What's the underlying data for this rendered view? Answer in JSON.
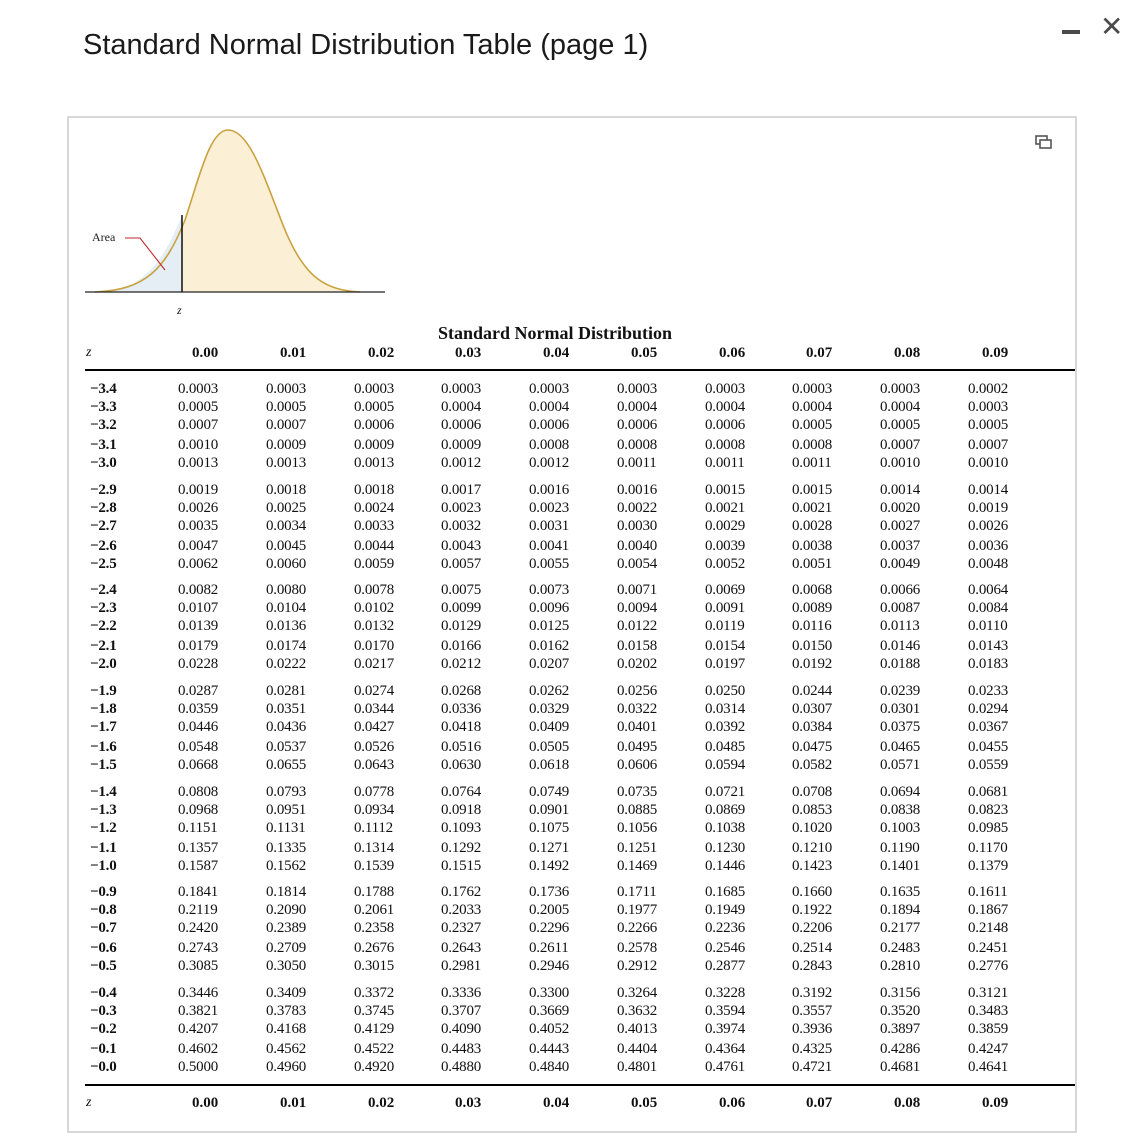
{
  "window": {
    "title": "Standard Normal Distribution Table (page 1)",
    "minimize_icon": "minimize-icon",
    "close_glyph": "✕"
  },
  "figure": {
    "area_label": "Area",
    "z_label": "z"
  },
  "table": {
    "caption": "Standard Normal Distribution",
    "z_header": "z",
    "columns": [
      "0.00",
      "0.01",
      "0.02",
      "0.03",
      "0.04",
      "0.05",
      "0.06",
      "0.07",
      "0.08",
      "0.09"
    ],
    "groups": [
      [
        {
          "z": "−3.4",
          "values": [
            "0.0003",
            "0.0003",
            "0.0003",
            "0.0003",
            "0.0003",
            "0.0003",
            "0.0003",
            "0.0003",
            "0.0003",
            "0.0002"
          ]
        },
        {
          "z": "−3.3",
          "values": [
            "0.0005",
            "0.0005",
            "0.0005",
            "0.0004",
            "0.0004",
            "0.0004",
            "0.0004",
            "0.0004",
            "0.0004",
            "0.0003"
          ]
        },
        {
          "z": "−3.2",
          "values": [
            "0.0007",
            "0.0007",
            "0.0006",
            "0.0006",
            "0.0006",
            "0.0006",
            "0.0006",
            "0.0005",
            "0.0005",
            "0.0005"
          ]
        },
        {
          "z": "−3.1",
          "values": [
            "0.0010",
            "0.0009",
            "0.0009",
            "0.0009",
            "0.0008",
            "0.0008",
            "0.0008",
            "0.0008",
            "0.0007",
            "0.0007"
          ]
        },
        {
          "z": "−3.0",
          "values": [
            "0.0013",
            "0.0013",
            "0.0013",
            "0.0012",
            "0.0012",
            "0.0011",
            "0.0011",
            "0.0011",
            "0.0010",
            "0.0010"
          ]
        }
      ],
      [
        {
          "z": "−2.9",
          "values": [
            "0.0019",
            "0.0018",
            "0.0018",
            "0.0017",
            "0.0016",
            "0.0016",
            "0.0015",
            "0.0015",
            "0.0014",
            "0.0014"
          ]
        },
        {
          "z": "−2.8",
          "values": [
            "0.0026",
            "0.0025",
            "0.0024",
            "0.0023",
            "0.0023",
            "0.0022",
            "0.0021",
            "0.0021",
            "0.0020",
            "0.0019"
          ]
        },
        {
          "z": "−2.7",
          "values": [
            "0.0035",
            "0.0034",
            "0.0033",
            "0.0032",
            "0.0031",
            "0.0030",
            "0.0029",
            "0.0028",
            "0.0027",
            "0.0026"
          ]
        },
        {
          "z": "−2.6",
          "values": [
            "0.0047",
            "0.0045",
            "0.0044",
            "0.0043",
            "0.0041",
            "0.0040",
            "0.0039",
            "0.0038",
            "0.0037",
            "0.0036"
          ]
        },
        {
          "z": "−2.5",
          "values": [
            "0.0062",
            "0.0060",
            "0.0059",
            "0.0057",
            "0.0055",
            "0.0054",
            "0.0052",
            "0.0051",
            "0.0049",
            "0.0048"
          ]
        }
      ],
      [
        {
          "z": "−2.4",
          "values": [
            "0.0082",
            "0.0080",
            "0.0078",
            "0.0075",
            "0.0073",
            "0.0071",
            "0.0069",
            "0.0068",
            "0.0066",
            "0.0064"
          ]
        },
        {
          "z": "−2.3",
          "values": [
            "0.0107",
            "0.0104",
            "0.0102",
            "0.0099",
            "0.0096",
            "0.0094",
            "0.0091",
            "0.0089",
            "0.0087",
            "0.0084"
          ]
        },
        {
          "z": "−2.2",
          "values": [
            "0.0139",
            "0.0136",
            "0.0132",
            "0.0129",
            "0.0125",
            "0.0122",
            "0.0119",
            "0.0116",
            "0.0113",
            "0.0110"
          ]
        },
        {
          "z": "−2.1",
          "values": [
            "0.0179",
            "0.0174",
            "0.0170",
            "0.0166",
            "0.0162",
            "0.0158",
            "0.0154",
            "0.0150",
            "0.0146",
            "0.0143"
          ]
        },
        {
          "z": "−2.0",
          "values": [
            "0.0228",
            "0.0222",
            "0.0217",
            "0.0212",
            "0.0207",
            "0.0202",
            "0.0197",
            "0.0192",
            "0.0188",
            "0.0183"
          ]
        }
      ],
      [
        {
          "z": "−1.9",
          "values": [
            "0.0287",
            "0.0281",
            "0.0274",
            "0.0268",
            "0.0262",
            "0.0256",
            "0.0250",
            "0.0244",
            "0.0239",
            "0.0233"
          ]
        },
        {
          "z": "−1.8",
          "values": [
            "0.0359",
            "0.0351",
            "0.0344",
            "0.0336",
            "0.0329",
            "0.0322",
            "0.0314",
            "0.0307",
            "0.0301",
            "0.0294"
          ]
        },
        {
          "z": "−1.7",
          "values": [
            "0.0446",
            "0.0436",
            "0.0427",
            "0.0418",
            "0.0409",
            "0.0401",
            "0.0392",
            "0.0384",
            "0.0375",
            "0.0367"
          ]
        },
        {
          "z": "−1.6",
          "values": [
            "0.0548",
            "0.0537",
            "0.0526",
            "0.0516",
            "0.0505",
            "0.0495",
            "0.0485",
            "0.0475",
            "0.0465",
            "0.0455"
          ]
        },
        {
          "z": "−1.5",
          "values": [
            "0.0668",
            "0.0655",
            "0.0643",
            "0.0630",
            "0.0618",
            "0.0606",
            "0.0594",
            "0.0582",
            "0.0571",
            "0.0559"
          ]
        }
      ],
      [
        {
          "z": "−1.4",
          "values": [
            "0.0808",
            "0.0793",
            "0.0778",
            "0.0764",
            "0.0749",
            "0.0735",
            "0.0721",
            "0.0708",
            "0.0694",
            "0.0681"
          ]
        },
        {
          "z": "−1.3",
          "values": [
            "0.0968",
            "0.0951",
            "0.0934",
            "0.0918",
            "0.0901",
            "0.0885",
            "0.0869",
            "0.0853",
            "0.0838",
            "0.0823"
          ]
        },
        {
          "z": "−1.2",
          "values": [
            "0.1151",
            "0.1131",
            "0.1112",
            "0.1093",
            "0.1075",
            "0.1056",
            "0.1038",
            "0.1020",
            "0.1003",
            "0.0985"
          ]
        },
        {
          "z": "−1.1",
          "values": [
            "0.1357",
            "0.1335",
            "0.1314",
            "0.1292",
            "0.1271",
            "0.1251",
            "0.1230",
            "0.1210",
            "0.1190",
            "0.1170"
          ]
        },
        {
          "z": "−1.0",
          "values": [
            "0.1587",
            "0.1562",
            "0.1539",
            "0.1515",
            "0.1492",
            "0.1469",
            "0.1446",
            "0.1423",
            "0.1401",
            "0.1379"
          ]
        }
      ],
      [
        {
          "z": "−0.9",
          "values": [
            "0.1841",
            "0.1814",
            "0.1788",
            "0.1762",
            "0.1736",
            "0.1711",
            "0.1685",
            "0.1660",
            "0.1635",
            "0.1611"
          ]
        },
        {
          "z": "−0.8",
          "values": [
            "0.2119",
            "0.2090",
            "0.2061",
            "0.2033",
            "0.2005",
            "0.1977",
            "0.1949",
            "0.1922",
            "0.1894",
            "0.1867"
          ]
        },
        {
          "z": "−0.7",
          "values": [
            "0.2420",
            "0.2389",
            "0.2358",
            "0.2327",
            "0.2296",
            "0.2266",
            "0.2236",
            "0.2206",
            "0.2177",
            "0.2148"
          ]
        },
        {
          "z": "−0.6",
          "values": [
            "0.2743",
            "0.2709",
            "0.2676",
            "0.2643",
            "0.2611",
            "0.2578",
            "0.2546",
            "0.2514",
            "0.2483",
            "0.2451"
          ]
        },
        {
          "z": "−0.5",
          "values": [
            "0.3085",
            "0.3050",
            "0.3015",
            "0.2981",
            "0.2946",
            "0.2912",
            "0.2877",
            "0.2843",
            "0.2810",
            "0.2776"
          ]
        }
      ],
      [
        {
          "z": "−0.4",
          "values": [
            "0.3446",
            "0.3409",
            "0.3372",
            "0.3336",
            "0.3300",
            "0.3264",
            "0.3228",
            "0.3192",
            "0.3156",
            "0.3121"
          ]
        },
        {
          "z": "−0.3",
          "values": [
            "0.3821",
            "0.3783",
            "0.3745",
            "0.3707",
            "0.3669",
            "0.3632",
            "0.3594",
            "0.3557",
            "0.3520",
            "0.3483"
          ]
        },
        {
          "z": "−0.2",
          "values": [
            "0.4207",
            "0.4168",
            "0.4129",
            "0.4090",
            "0.4052",
            "0.4013",
            "0.3974",
            "0.3936",
            "0.3897",
            "0.3859"
          ]
        },
        {
          "z": "−0.1",
          "values": [
            "0.4602",
            "0.4562",
            "0.4522",
            "0.4483",
            "0.4443",
            "0.4404",
            "0.4364",
            "0.4325",
            "0.4286",
            "0.4247"
          ]
        },
        {
          "z": "−0.0",
          "values": [
            "0.5000",
            "0.4960",
            "0.4920",
            "0.4880",
            "0.4840",
            "0.4801",
            "0.4761",
            "0.4721",
            "0.4681",
            "0.4641"
          ]
        }
      ]
    ]
  }
}
